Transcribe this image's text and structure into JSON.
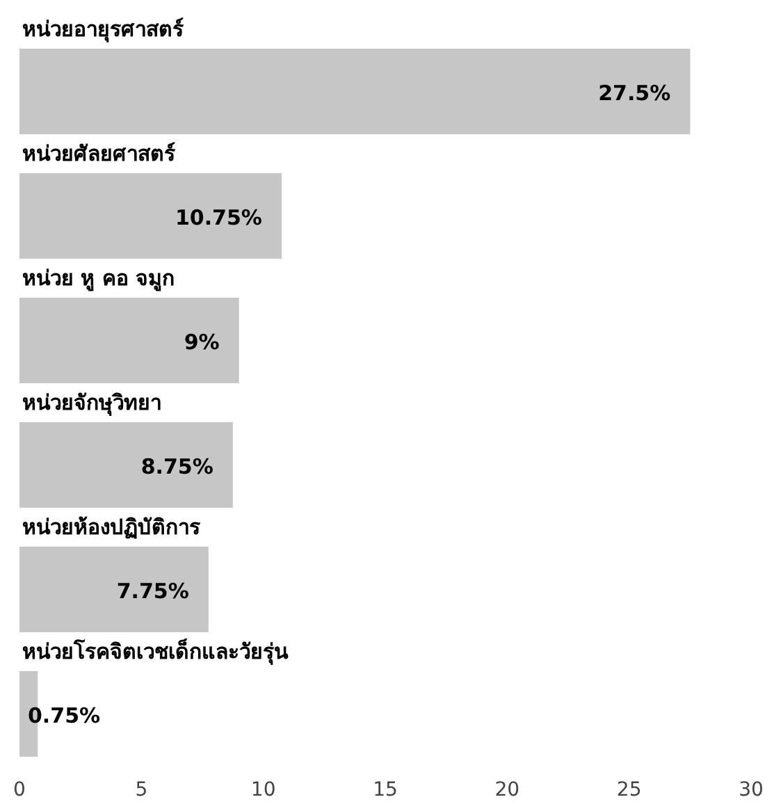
{
  "chart_data": {
    "type": "bar",
    "orientation": "horizontal",
    "categories": [
      "หน่วยอายุรศาสตร์",
      "หน่วยศัลยศาสตร์",
      "หน่วย หู คอ จมูก",
      "หน่วยจักษุวิทยา",
      "หน่วยห้องปฏิบัติการ",
      "หน่วยโรคจิตเวชเด็กและวัยรุ่น"
    ],
    "values": [
      27.5,
      10.75,
      9,
      8.75,
      7.75,
      0.75
    ],
    "value_labels": [
      "27.5%",
      "10.75%",
      "9%",
      "8.75%",
      "7.75%",
      "0.75%"
    ],
    "color": "#c6c6c6",
    "xlim": [
      0,
      30
    ],
    "xticks": [
      0,
      5,
      10,
      15,
      20,
      25,
      30
    ]
  }
}
